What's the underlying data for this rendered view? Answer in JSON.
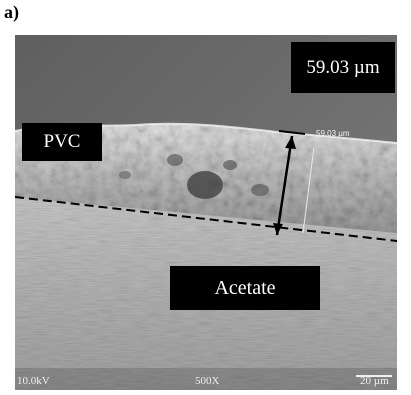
{
  "figure": {
    "panel_label": "a)"
  },
  "labels": {
    "thickness_box": "59.03 µm",
    "thickness_small": "59.03 µm",
    "pvc": "PVC",
    "acetate": "Acetate"
  },
  "sem_info": {
    "voltage": "10.0kV",
    "magnification": "500X",
    "scale": "20 µm"
  },
  "colors": {
    "vacuum_background": "#6f6f6f",
    "label_box": "#000000",
    "label_text": "#ffffff"
  }
}
